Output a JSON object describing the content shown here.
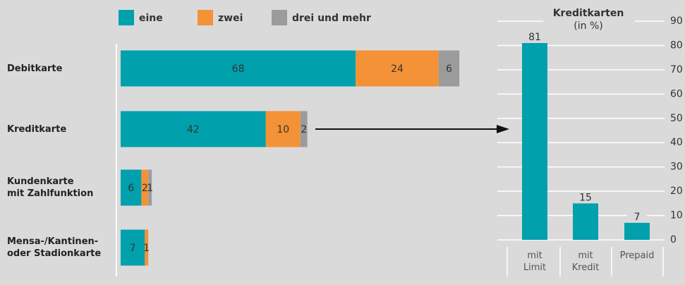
{
  "chart_data": [
    {
      "type": "hbar_stacked",
      "categories": [
        "Debitkarte",
        "Kreditkarte",
        "Kundenkarte\nmit Zahlfunktion",
        "Mensa-/Kantinen-\noder Stadionkarte"
      ],
      "series": [
        {
          "name": "eine",
          "color": "#00a0ad",
          "values": [
            68,
            42,
            6,
            7
          ]
        },
        {
          "name": "zwei",
          "color": "#f39237",
          "values": [
            24,
            10,
            2,
            1
          ]
        },
        {
          "name": "drei und mehr",
          "color": "#9b9b9b",
          "values": [
            6,
            2,
            1,
            null
          ]
        }
      ]
    },
    {
      "type": "bar",
      "title": "Kreditkarten",
      "subtitle": "(in %)",
      "categories": [
        "mit\nLimit",
        "mit\nKredit",
        "Prepaid"
      ],
      "values": [
        81,
        15,
        7
      ],
      "color": "#00a0ad",
      "ylim": [
        0,
        90
      ],
      "yticks": [
        0,
        10,
        20,
        30,
        40,
        50,
        60,
        70,
        80,
        90
      ],
      "grid": true
    }
  ]
}
